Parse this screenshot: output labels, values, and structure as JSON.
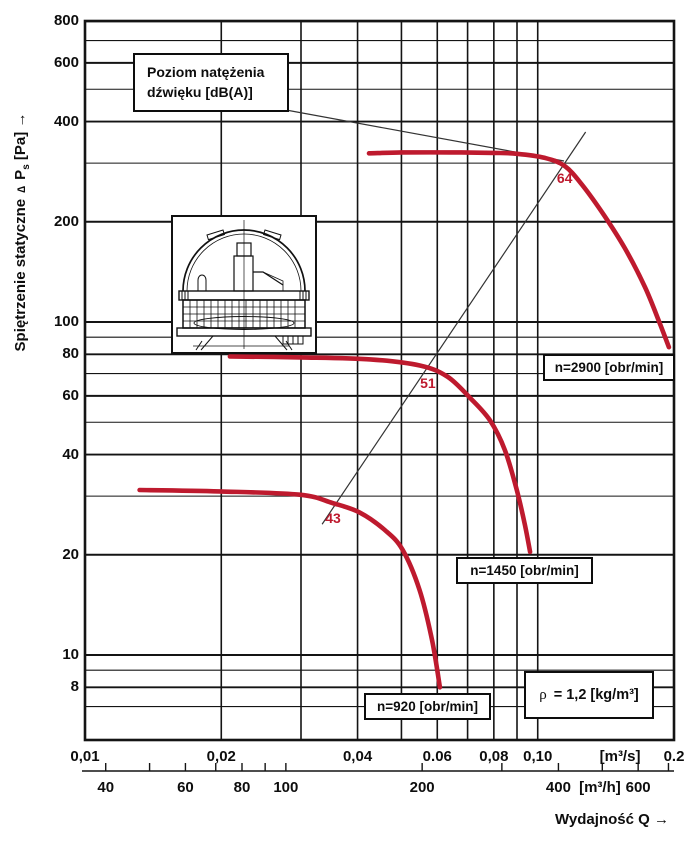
{
  "page": {
    "background": "#ffffff",
    "grid_color": "#141414",
    "curve_color": "#be1a2e"
  },
  "chart_data": {
    "type": "line",
    "x_scale": "log",
    "y_scale": "log",
    "xlim": [
      0.01,
      0.2
    ],
    "ylim": [
      5.5,
      800
    ],
    "grid": "on",
    "xlabel": "Wydajność Q →",
    "ylabel": {
      "main": "Spiętrzenie statyczne",
      "delta": "∆",
      "sym": "P",
      "sub": "s",
      "unit": "[Pa]",
      "arrow": "→"
    },
    "y_axis": {
      "ticks": [
        {
          "label": "800",
          "v": 800
        },
        {
          "label": "600",
          "v": 600
        },
        {
          "label": "400",
          "v": 400
        },
        {
          "label": "200",
          "v": 200
        },
        {
          "label": "100",
          "v": 100
        },
        {
          "label": "80",
          "v": 80
        },
        {
          "label": "60",
          "v": 60
        },
        {
          "label": "40",
          "v": 40
        },
        {
          "label": "20",
          "v": 20
        },
        {
          "label": "10",
          "v": 10
        },
        {
          "label": "8",
          "v": 8
        }
      ],
      "gridlines": [
        7,
        8,
        9,
        10,
        20,
        30,
        40,
        50,
        60,
        70,
        80,
        90,
        100,
        200,
        300,
        400,
        500,
        600,
        700,
        800
      ]
    },
    "x_axis_primary": {
      "unit": "[m³/s]",
      "unit_pos": 0.152,
      "ticks": [
        {
          "label": "0,01",
          "v": 0.01
        },
        {
          "label": "0,02",
          "v": 0.02
        },
        {
          "label": "0,04",
          "v": 0.04
        },
        {
          "label": "0.06",
          "v": 0.06
        },
        {
          "label": "0,08",
          "v": 0.08
        },
        {
          "label": "0,10",
          "v": 0.1
        },
        {
          "label": "0.2",
          "v": 0.2
        }
      ],
      "gridlines": [
        0.01,
        0.02,
        0.03,
        0.04,
        0.05,
        0.06,
        0.07,
        0.08,
        0.09,
        0.1,
        0.2
      ]
    },
    "x_axis_secondary": {
      "unit": "[m³/h]",
      "unit_pos": 494,
      "labels": [
        {
          "label": "40",
          "v": 40
        },
        {
          "label": "60",
          "v": 60
        },
        {
          "label": "80",
          "v": 80
        },
        {
          "label": "100",
          "v": 100
        },
        {
          "label": "200",
          "v": 200
        },
        {
          "label": "400",
          "v": 400
        },
        {
          "label": "600",
          "v": 600
        }
      ],
      "tick_values": [
        40,
        50,
        60,
        70,
        80,
        90,
        100,
        200,
        300,
        400,
        500,
        600,
        700
      ],
      "seconds_per_hour": 3600
    },
    "series": [
      {
        "label": "n=2900 [obr/min]",
        "color": "#be1a2e",
        "points": [
          [
            0.0424,
            321
          ],
          [
            0.05,
            323
          ],
          [
            0.064,
            323
          ],
          [
            0.08,
            322
          ],
          [
            0.09,
            320
          ],
          [
            0.1037,
            311
          ],
          [
            0.1147,
            294
          ],
          [
            0.1254,
            258
          ],
          [
            0.1402,
            209
          ],
          [
            0.1556,
            167
          ],
          [
            0.1727,
            127
          ],
          [
            0.1866,
            98
          ],
          [
            0.1949,
            84
          ]
        ]
      },
      {
        "label": "n=1450 [obr/min]",
        "color": "#be1a2e",
        "points": [
          [
            0.0209,
            78.8
          ],
          [
            0.0299,
            78.3
          ],
          [
            0.0427,
            77.2
          ],
          [
            0.0549,
            74
          ],
          [
            0.0631,
            68.6
          ],
          [
            0.0708,
            59.3
          ],
          [
            0.0784,
            50.7
          ],
          [
            0.0846,
            41.3
          ],
          [
            0.0899,
            31.3
          ],
          [
            0.0937,
            24.6
          ],
          [
            0.0962,
            20.4
          ]
        ]
      },
      {
        "label": "n=920 [obr/min]",
        "color": "#be1a2e",
        "points": [
          [
            0.0132,
            31.3
          ],
          [
            0.0198,
            31.0
          ],
          [
            0.0298,
            30.3
          ],
          [
            0.0352,
            28.6
          ],
          [
            0.0404,
            26.8
          ],
          [
            0.046,
            23.7
          ],
          [
            0.0503,
            20.7
          ],
          [
            0.0548,
            15.7
          ],
          [
            0.0584,
            11.1
          ],
          [
            0.0608,
            8.0
          ]
        ]
      }
    ],
    "noise_levels": {
      "box_label_line1": "Poziom natężenia",
      "box_label_line2": "dźwięku [dB(A)]",
      "color": "#be1a2e",
      "points": [
        {
          "db": "43",
          "q": 0.0353,
          "p": 25.8
        },
        {
          "db": "51",
          "q": 0.0572,
          "p": 65.6
        },
        {
          "db": "64",
          "q": 0.1147,
          "p": 270
        }
      ],
      "trend_line": [
        [
          0.0334,
          24.7
        ],
        [
          0.1276,
          372
        ]
      ]
    },
    "density_label": {
      "symbol": "ρ",
      "text": "= 1,2 [kg/m³]"
    }
  }
}
